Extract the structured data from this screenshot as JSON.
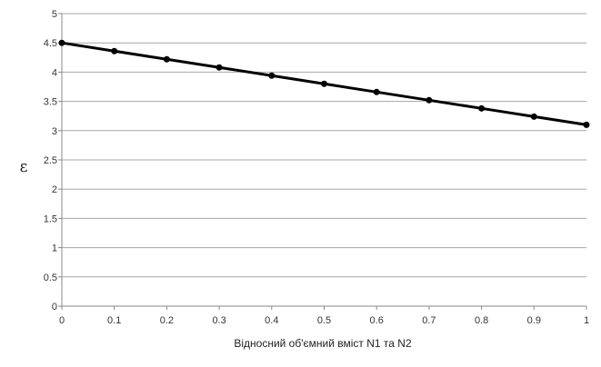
{
  "chart_data": {
    "type": "line",
    "title": "",
    "xlabel": "Відносний об'ємний вміст N1 та N2",
    "ylabel": "ε",
    "xlim": [
      0,
      1
    ],
    "ylim": [
      0,
      5
    ],
    "x_ticks": [
      "0",
      "0.1",
      "0.2",
      "0.3",
      "0.4",
      "0.5",
      "0.6",
      "0.7",
      "0.8",
      "0.9",
      "1"
    ],
    "y_ticks": [
      "0",
      "0.5",
      "1",
      "1.5",
      "2",
      "2.5",
      "3",
      "3.5",
      "4",
      "4.5",
      "5"
    ],
    "grid": "horizontal",
    "legend": "none",
    "series": [
      {
        "x": [
          0,
          0.1,
          0.2,
          0.3,
          0.4,
          0.5,
          0.6,
          0.7,
          0.8,
          0.9,
          1.0
        ],
        "y": [
          4.5,
          4.36,
          4.22,
          4.08,
          3.94,
          3.8,
          3.66,
          3.52,
          3.38,
          3.24,
          3.1
        ],
        "color": "#000000",
        "marker": "circle"
      }
    ]
  }
}
